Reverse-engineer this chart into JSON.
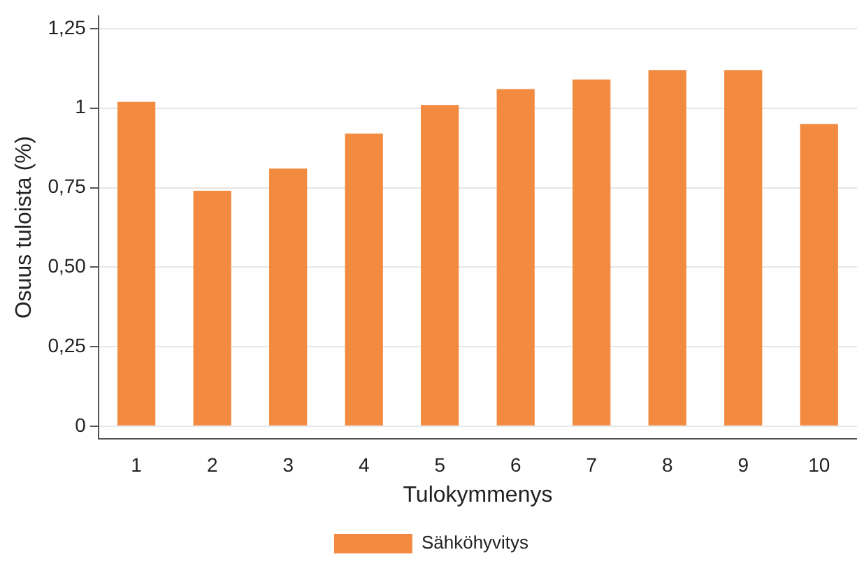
{
  "chart_data": {
    "type": "bar",
    "xlabel": "Tulokymmenys",
    "ylabel": "Osuus tuloista (%)",
    "categories": [
      "1",
      "2",
      "3",
      "4",
      "5",
      "6",
      "7",
      "8",
      "9",
      "10"
    ],
    "series": [
      {
        "name": "Sähköhyvitys",
        "color": "#f28a3f",
        "values": [
          1.02,
          0.74,
          0.81,
          0.92,
          1.01,
          1.06,
          1.09,
          1.12,
          1.12,
          0.95
        ]
      }
    ],
    "ylim": [
      -0.04,
      1.29
    ],
    "yticks": [
      0,
      {
        "value": 0.25,
        "label": "0,25"
      },
      {
        "value": 0.5,
        "label": "0,50"
      },
      {
        "value": 0.75,
        "label": "0,75"
      },
      1,
      {
        "value": 1.25,
        "label": "1,25"
      }
    ],
    "grid": "y",
    "legend": "bottom"
  }
}
